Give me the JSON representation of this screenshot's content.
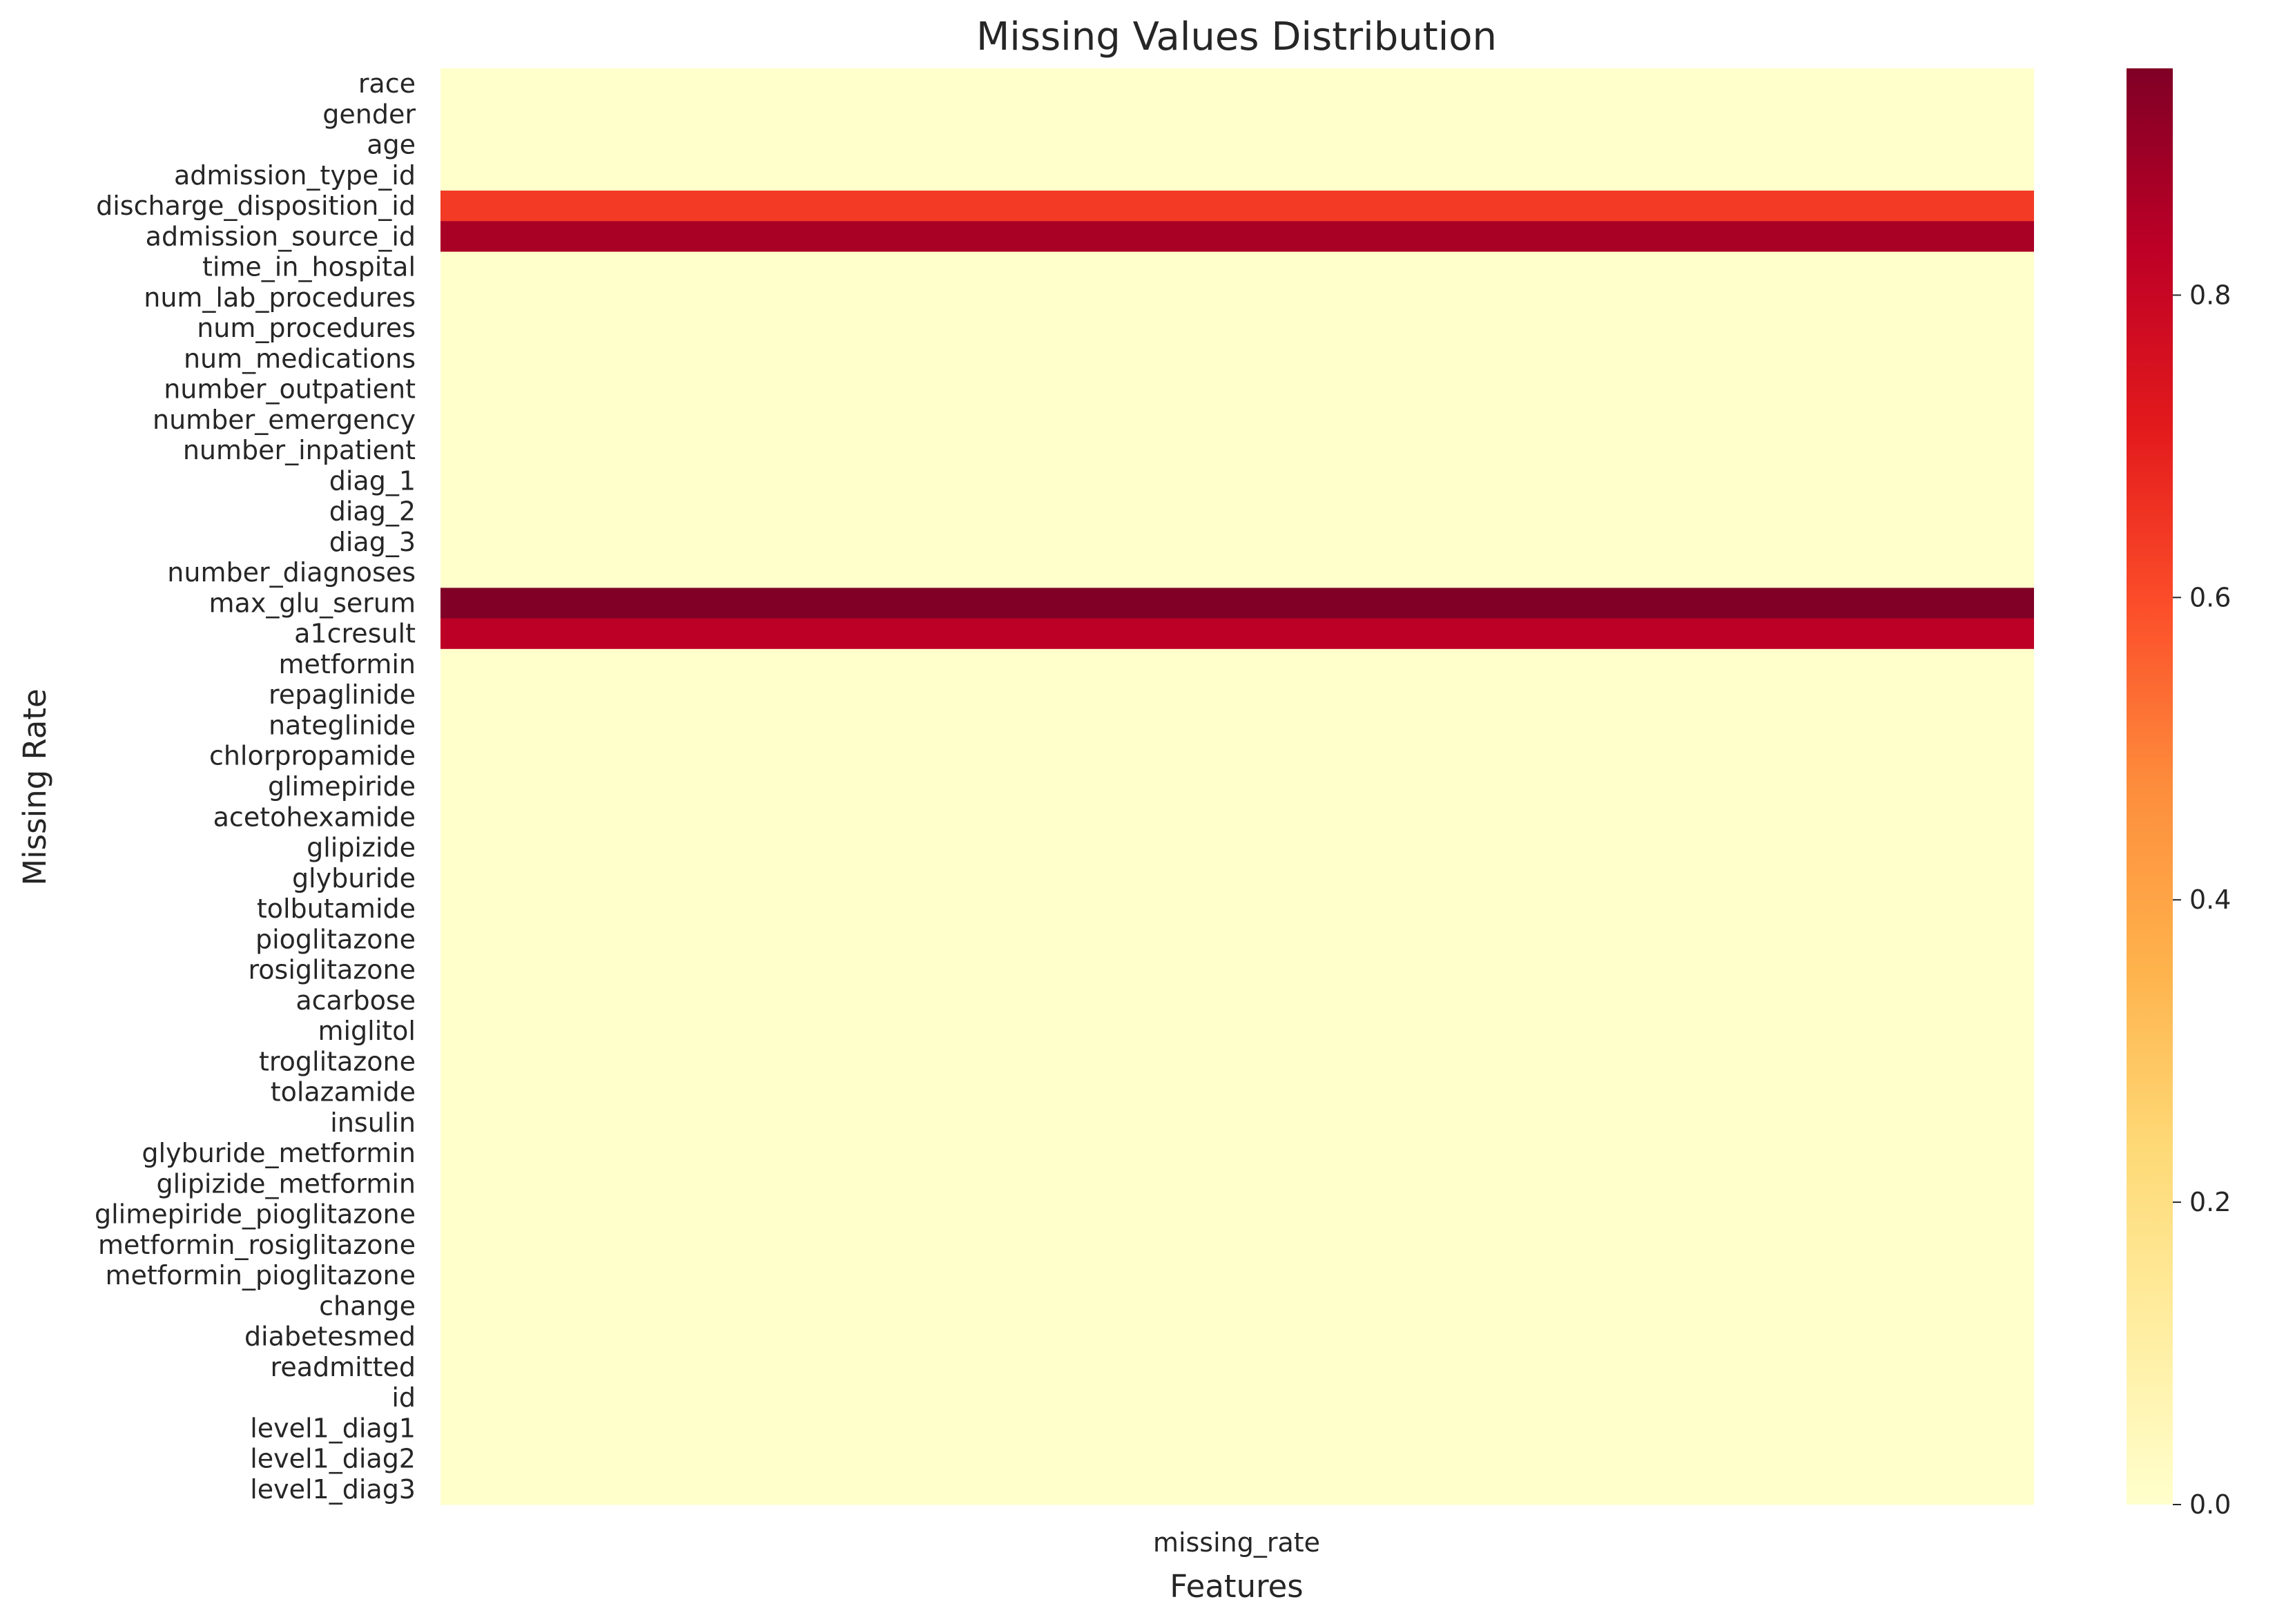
{
  "chart_data": {
    "type": "heatmap",
    "title": "Missing Values Distribution",
    "xlabel": "Features",
    "ylabel": "Missing Rate",
    "columns": [
      "missing_rate"
    ],
    "rows": [
      "race",
      "gender",
      "age",
      "admission_type_id",
      "discharge_disposition_id",
      "admission_source_id",
      "time_in_hospital",
      "num_lab_procedures",
      "num_procedures",
      "num_medications",
      "number_outpatient",
      "number_emergency",
      "number_inpatient",
      "diag_1",
      "diag_2",
      "diag_3",
      "number_diagnoses",
      "max_glu_serum",
      "a1cresult",
      "metformin",
      "repaglinide",
      "nateglinide",
      "chlorpropamide",
      "glimepiride",
      "acetohexamide",
      "glipizide",
      "glyburide",
      "tolbutamide",
      "pioglitazone",
      "rosiglitazone",
      "acarbose",
      "miglitol",
      "troglitazone",
      "tolazamide",
      "insulin",
      "glyburide_metformin",
      "glipizide_metformin",
      "glimepiride_pioglitazone",
      "metformin_rosiglitazone",
      "metformin_pioglitazone",
      "change",
      "diabetesmed",
      "readmitted",
      "id",
      "level1_diag1",
      "level1_diag2",
      "level1_diag3"
    ],
    "values": [
      0,
      0,
      0,
      0,
      0.64,
      0.87,
      0,
      0,
      0,
      0,
      0,
      0,
      0,
      0,
      0,
      0,
      0,
      0.95,
      0.83,
      0,
      0,
      0,
      0,
      0,
      0,
      0,
      0,
      0,
      0,
      0,
      0,
      0,
      0,
      0,
      0,
      0,
      0,
      0,
      0,
      0,
      0,
      0,
      0,
      0,
      0,
      0,
      0
    ],
    "colorscale": "YlOrRd",
    "colorbar": {
      "range": [
        0,
        0.95
      ],
      "ticks": [
        "0.0",
        "0.2",
        "0.4",
        "0.6",
        "0.8"
      ]
    },
    "grid": false
  }
}
